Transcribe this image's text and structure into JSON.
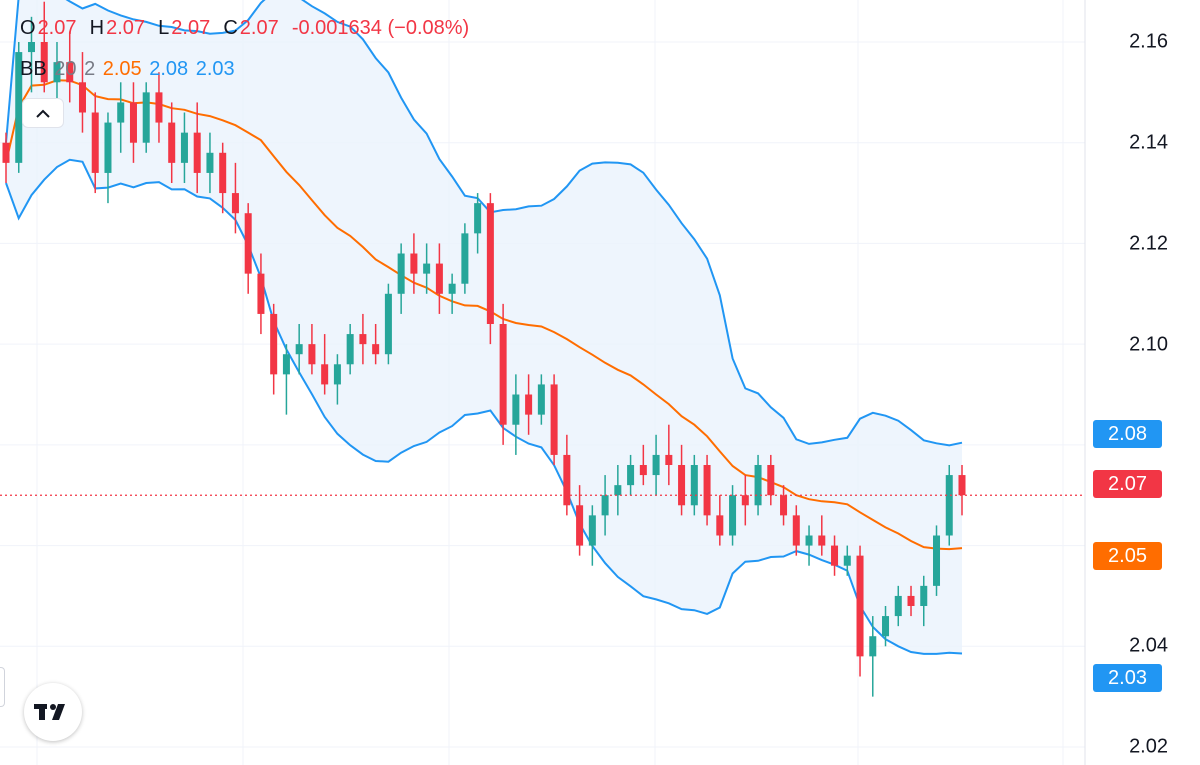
{
  "legend": {
    "ohlc": {
      "o_label": "O",
      "o_value": "2.07",
      "h_label": "H",
      "h_value": "2.07",
      "l_label": "L",
      "l_value": "2.07",
      "c_label": "C",
      "c_value": "2.07",
      "change": "-0.001634 (−0.08%)"
    },
    "indicator": {
      "name": "BB",
      "length": "20",
      "mult": "2",
      "basis": "2.05",
      "upper": "2.08",
      "lower": "2.03"
    }
  },
  "collapse_icon": "chevron-up-icon",
  "logo_icon": "tradingview-logo",
  "price_axis": {
    "ticks": [
      "2.16",
      "2.14",
      "2.12",
      "2.10",
      "2.04",
      "2.02"
    ]
  },
  "badges": {
    "upper": "2.08",
    "last": "2.07",
    "basis": "2.05",
    "lower": "2.03"
  },
  "colors": {
    "up": "#26a69a",
    "down": "#f23645",
    "basis": "#ff6d00",
    "band": "#2196f3",
    "band_fill": "#eaf3fd",
    "last_price": "#f23645"
  },
  "chart_data": {
    "type": "candlestick",
    "indicator": "Bollinger Bands (20, 2)",
    "ylim": [
      2.02,
      2.16
    ],
    "last_price": 2.07,
    "candles": [
      [
        2.14,
        2.142,
        2.132,
        2.136
      ],
      [
        2.136,
        2.16,
        2.134,
        2.158
      ],
      [
        2.158,
        2.165,
        2.15,
        2.16
      ],
      [
        2.16,
        2.168,
        2.15,
        2.152
      ],
      [
        2.152,
        2.16,
        2.144,
        2.156
      ],
      [
        2.156,
        2.162,
        2.148,
        2.152
      ],
      [
        2.152,
        2.158,
        2.142,
        2.146
      ],
      [
        2.146,
        2.15,
        2.13,
        2.134
      ],
      [
        2.134,
        2.146,
        2.128,
        2.144
      ],
      [
        2.144,
        2.152,
        2.138,
        2.148
      ],
      [
        2.148,
        2.152,
        2.136,
        2.14
      ],
      [
        2.14,
        2.152,
        2.138,
        2.15
      ],
      [
        2.15,
        2.154,
        2.14,
        2.144
      ],
      [
        2.144,
        2.148,
        2.132,
        2.136
      ],
      [
        2.136,
        2.146,
        2.132,
        2.142
      ],
      [
        2.142,
        2.148,
        2.13,
        2.134
      ],
      [
        2.134,
        2.142,
        2.13,
        2.138
      ],
      [
        2.138,
        2.14,
        2.126,
        2.13
      ],
      [
        2.13,
        2.136,
        2.122,
        2.126
      ],
      [
        2.126,
        2.128,
        2.11,
        2.114
      ],
      [
        2.114,
        2.118,
        2.102,
        2.106
      ],
      [
        2.106,
        2.108,
        2.09,
        2.094
      ],
      [
        2.094,
        2.1,
        2.086,
        2.098
      ],
      [
        2.098,
        2.104,
        2.094,
        2.1
      ],
      [
        2.1,
        2.104,
        2.094,
        2.096
      ],
      [
        2.096,
        2.102,
        2.09,
        2.092
      ],
      [
        2.092,
        2.098,
        2.088,
        2.096
      ],
      [
        2.096,
        2.104,
        2.094,
        2.102
      ],
      [
        2.102,
        2.106,
        2.096,
        2.1
      ],
      [
        2.1,
        2.104,
        2.096,
        2.098
      ],
      [
        2.098,
        2.112,
        2.096,
        2.11
      ],
      [
        2.11,
        2.12,
        2.106,
        2.118
      ],
      [
        2.118,
        2.122,
        2.11,
        2.114
      ],
      [
        2.114,
        2.12,
        2.11,
        2.116
      ],
      [
        2.116,
        2.12,
        2.106,
        2.11
      ],
      [
        2.11,
        2.114,
        2.106,
        2.112
      ],
      [
        2.112,
        2.124,
        2.11,
        2.122
      ],
      [
        2.122,
        2.13,
        2.118,
        2.128
      ],
      [
        2.128,
        2.13,
        2.1,
        2.104
      ],
      [
        2.104,
        2.108,
        2.08,
        2.084
      ],
      [
        2.084,
        2.094,
        2.078,
        2.09
      ],
      [
        2.09,
        2.094,
        2.082,
        2.086
      ],
      [
        2.086,
        2.094,
        2.084,
        2.092
      ],
      [
        2.092,
        2.094,
        2.076,
        2.078
      ],
      [
        2.078,
        2.082,
        2.066,
        2.068
      ],
      [
        2.068,
        2.072,
        2.058,
        2.06
      ],
      [
        2.06,
        2.068,
        2.056,
        2.066
      ],
      [
        2.066,
        2.074,
        2.062,
        2.07
      ],
      [
        2.07,
        2.076,
        2.066,
        2.072
      ],
      [
        2.072,
        2.078,
        2.07,
        2.076
      ],
      [
        2.076,
        2.08,
        2.072,
        2.074
      ],
      [
        2.074,
        2.082,
        2.07,
        2.078
      ],
      [
        2.078,
        2.084,
        2.072,
        2.076
      ],
      [
        2.076,
        2.08,
        2.066,
        2.068
      ],
      [
        2.068,
        2.078,
        2.066,
        2.076
      ],
      [
        2.076,
        2.078,
        2.064,
        2.066
      ],
      [
        2.066,
        2.07,
        2.06,
        2.062
      ],
      [
        2.062,
        2.072,
        2.06,
        2.07
      ],
      [
        2.07,
        2.074,
        2.064,
        2.068
      ],
      [
        2.068,
        2.078,
        2.066,
        2.076
      ],
      [
        2.076,
        2.078,
        2.068,
        2.07
      ],
      [
        2.07,
        2.072,
        2.064,
        2.066
      ],
      [
        2.066,
        2.068,
        2.058,
        2.06
      ],
      [
        2.06,
        2.064,
        2.056,
        2.062
      ],
      [
        2.062,
        2.066,
        2.058,
        2.06
      ],
      [
        2.06,
        2.062,
        2.054,
        2.056
      ],
      [
        2.056,
        2.06,
        2.054,
        2.058
      ],
      [
        2.058,
        2.06,
        2.034,
        2.038
      ],
      [
        2.038,
        2.046,
        2.03,
        2.042
      ],
      [
        2.042,
        2.048,
        2.04,
        2.046
      ],
      [
        2.046,
        2.052,
        2.044,
        2.05
      ],
      [
        2.05,
        2.052,
        2.046,
        2.048
      ],
      [
        2.048,
        2.054,
        2.044,
        2.052
      ],
      [
        2.052,
        2.064,
        2.05,
        2.062
      ],
      [
        2.062,
        2.076,
        2.06,
        2.074
      ],
      [
        2.074,
        2.076,
        2.066,
        2.07
      ]
    ]
  }
}
